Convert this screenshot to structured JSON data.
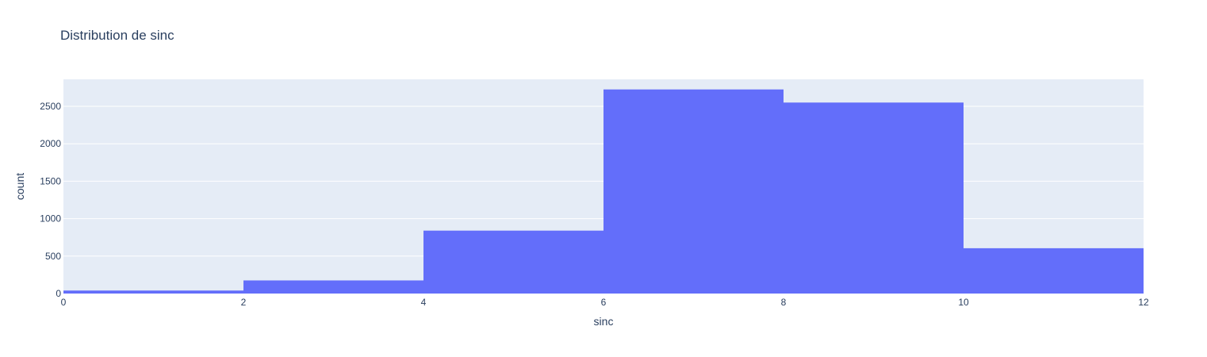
{
  "chart_data": {
    "type": "bar",
    "title": "Distribution de sinc",
    "xlabel": "sinc",
    "ylabel": "count",
    "xlim": [
      0,
      12
    ],
    "ylim": [
      0,
      2860
    ],
    "x_ticks": [
      0,
      2,
      4,
      6,
      8,
      10,
      12
    ],
    "y_ticks": [
      0,
      500,
      1000,
      1500,
      2000,
      2500
    ],
    "bins": [
      {
        "x0": 0,
        "x1": 2,
        "count": 40
      },
      {
        "x0": 2,
        "x1": 4,
        "count": 175
      },
      {
        "x0": 4,
        "x1": 6,
        "count": 840
      },
      {
        "x0": 6,
        "x1": 8,
        "count": 2725
      },
      {
        "x0": 8,
        "x1": 10,
        "count": 2550
      },
      {
        "x0": 10,
        "x1": 12,
        "count": 605
      }
    ],
    "bar_color": "#636efa",
    "plot_bg": "#e5ecf6",
    "grid_color": "#ffffff",
    "grid": true,
    "legend": "none"
  }
}
